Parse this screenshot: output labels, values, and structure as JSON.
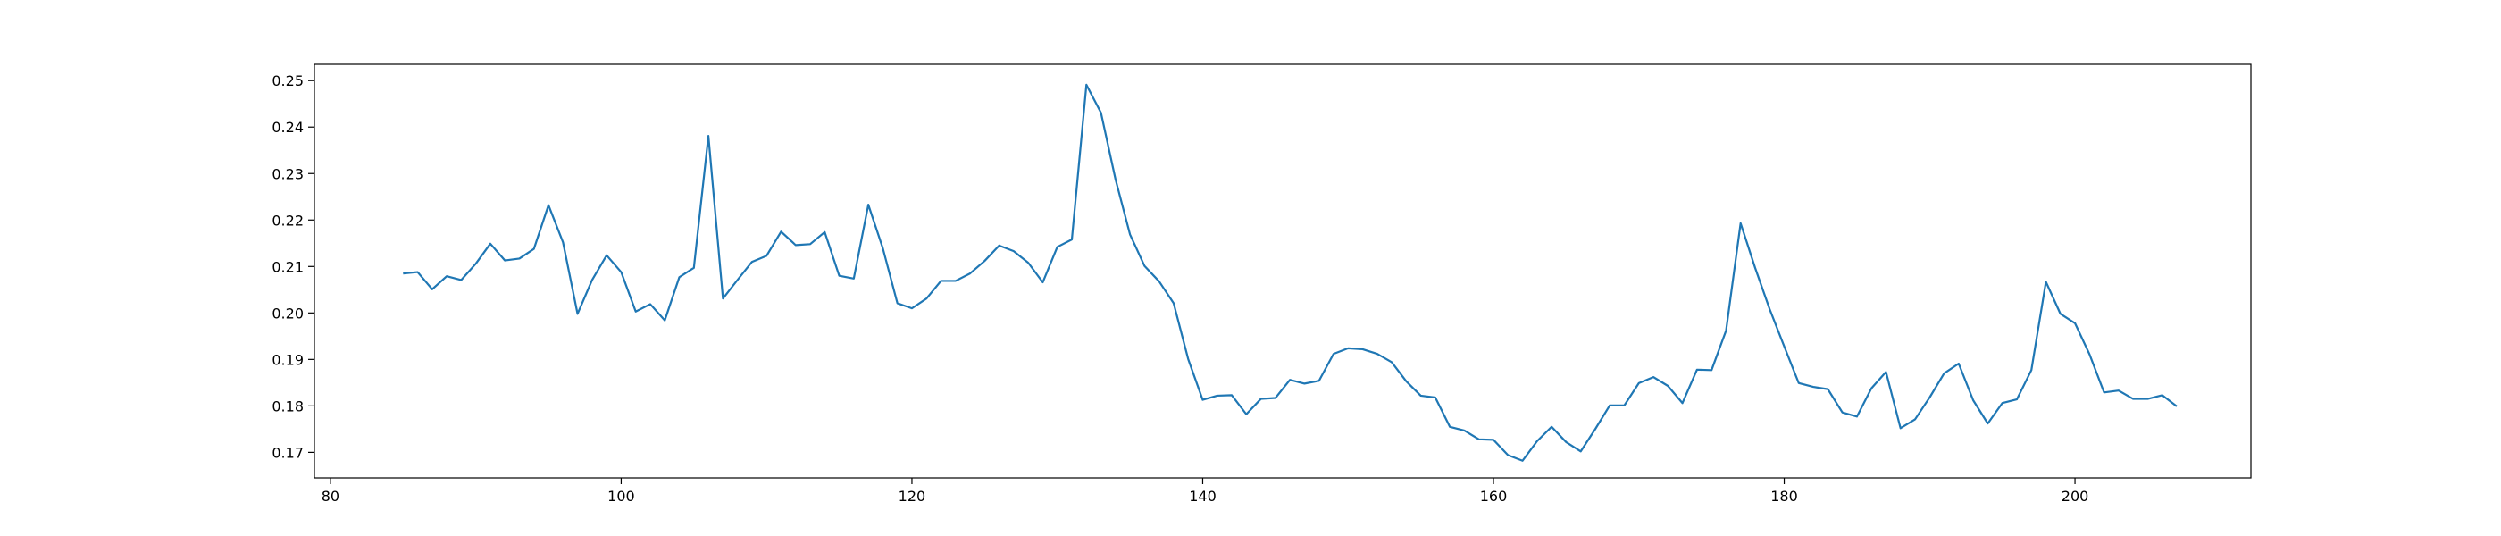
{
  "colors": {
    "line": "#1f77b4",
    "axes": "#000000",
    "background": "#ffffff"
  },
  "chart_data": {
    "type": "line",
    "title": "",
    "xlabel": "",
    "ylabel": "",
    "grid": false,
    "xlim": [
      78.9,
      212.1
    ],
    "ylim": [
      0.1645,
      0.2535
    ],
    "xticks": [
      80,
      100,
      120,
      140,
      160,
      180,
      200
    ],
    "xtick_labels": [
      "80",
      "100",
      "120",
      "140",
      "160",
      "180",
      "200"
    ],
    "yticks": [
      0.17,
      0.18,
      0.19,
      0.2,
      0.21,
      0.22,
      0.23,
      0.24,
      0.25
    ],
    "ytick_labels": [
      "0.17",
      "0.18",
      "0.19",
      "0.20",
      "0.21",
      "0.22",
      "0.23",
      "0.24",
      "0.25"
    ],
    "series": [
      {
        "x": [
          85,
          86,
          87,
          88,
          89,
          90,
          91,
          92,
          93,
          94,
          95,
          96,
          97,
          98,
          99,
          100,
          101,
          102,
          103,
          104,
          105,
          106,
          107,
          108,
          109,
          110,
          111,
          112,
          113,
          114,
          115,
          116,
          117,
          118,
          119,
          120,
          121,
          122,
          123,
          124,
          125,
          126,
          127,
          128,
          129,
          130,
          131,
          132,
          133,
          134,
          135,
          136,
          137,
          138,
          139,
          140,
          141,
          142,
          143,
          144,
          145,
          146,
          147,
          148,
          149,
          150,
          151,
          152,
          153,
          154,
          155,
          156,
          157,
          158,
          159,
          160,
          161,
          162,
          163,
          164,
          165,
          166,
          167,
          168,
          169,
          170,
          171,
          172,
          173,
          174,
          175,
          176,
          177,
          178,
          179,
          180,
          181,
          182,
          183,
          184,
          185,
          186,
          187,
          188,
          189,
          190,
          191,
          192,
          193,
          194,
          195,
          196,
          197,
          198,
          199,
          200,
          201,
          202,
          203,
          204,
          205,
          206,
          207
        ],
        "y": [
          0.2085,
          0.2088,
          0.2051,
          0.2079,
          0.2071,
          0.2106,
          0.2149,
          0.2113,
          0.2117,
          0.2138,
          0.2232,
          0.2152,
          0.1998,
          0.2071,
          0.2124,
          0.2088,
          0.2003,
          0.2019,
          0.1984,
          0.2077,
          0.2097,
          0.2381,
          0.2031,
          0.2071,
          0.211,
          0.2123,
          0.2175,
          0.2146,
          0.2148,
          0.2174,
          0.208,
          0.2074,
          0.2233,
          0.2139,
          0.2021,
          0.201,
          0.2031,
          0.2069,
          0.2069,
          0.2085,
          0.2112,
          0.2145,
          0.2133,
          0.2108,
          0.2066,
          0.2142,
          0.2158,
          0.2491,
          0.2431,
          0.2288,
          0.2169,
          0.2101,
          0.2068,
          0.2021,
          0.1901,
          0.1813,
          0.1822,
          0.1823,
          0.1782,
          0.1815,
          0.1817,
          0.1856,
          0.1848,
          0.1854,
          0.1912,
          0.1924,
          0.1922,
          0.1912,
          0.1894,
          0.1853,
          0.1822,
          0.1818,
          0.1755,
          0.1747,
          0.1728,
          0.1727,
          0.1694,
          0.1682,
          0.1724,
          0.1755,
          0.1722,
          0.1702,
          0.175,
          0.1801,
          0.1801,
          0.1849,
          0.1862,
          0.1843,
          0.1806,
          0.1878,
          0.1877,
          0.1962,
          0.2193,
          0.2097,
          0.2008,
          0.1928,
          0.1849,
          0.1841,
          0.1836,
          0.1786,
          0.1777,
          0.1838,
          0.1873,
          0.1752,
          0.1771,
          0.1818,
          0.187,
          0.1891,
          0.1812,
          0.1762,
          0.1806,
          0.1814,
          0.1877,
          0.2067,
          0.1998,
          0.1978,
          0.1911,
          0.1829,
          0.1833,
          0.1815,
          0.1815,
          0.1823,
          0.1799
        ]
      }
    ]
  }
}
